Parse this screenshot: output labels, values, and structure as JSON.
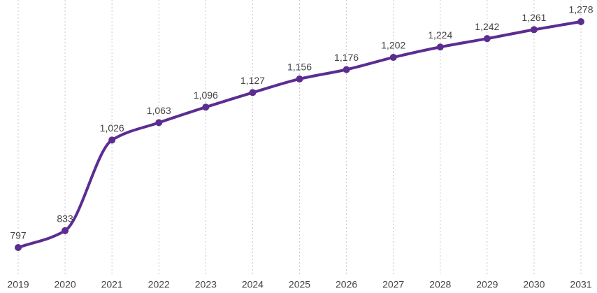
{
  "chart_data": {
    "type": "line",
    "categories": [
      "2019",
      "2020",
      "2021",
      "2022",
      "2023",
      "2024",
      "2025",
      "2026",
      "2027",
      "2028",
      "2029",
      "2030",
      "2031"
    ],
    "series": [
      {
        "color": "#5c2d91",
        "values": [
          797,
          833,
          1026,
          1063,
          1096,
          1127,
          1156,
          1176,
          1202,
          1224,
          1242,
          1261,
          1278
        ],
        "value_labels": [
          "797",
          "833",
          "1,026",
          "1,063",
          "1,096",
          "1,127",
          "1,156",
          "1,176",
          "1,202",
          "1,224",
          "1,242",
          "1,261",
          "1,278"
        ]
      }
    ],
    "grid": true
  }
}
